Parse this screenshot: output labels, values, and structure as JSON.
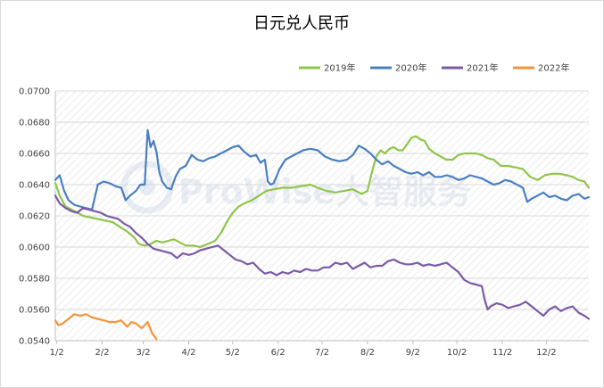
{
  "chart_data": {
    "type": "line",
    "title": "日元兑人民币",
    "xlabel": "",
    "ylabel": "",
    "categories": [
      "1/2",
      "2/2",
      "3/2",
      "4/2",
      "5/2",
      "6/2",
      "7/2",
      "8/2",
      "9/2",
      "10/2",
      "11/2",
      "12/2"
    ],
    "x_ticks": [
      "1/2",
      "2/2",
      "3/2",
      "4/2",
      "5/2",
      "6/2",
      "7/2",
      "8/2",
      "9/2",
      "10/2",
      "11/2",
      "12/2"
    ],
    "y_ticks": [
      "0.0540",
      "0.0560",
      "0.0580",
      "0.0600",
      "0.0620",
      "0.0640",
      "0.0660",
      "0.0680",
      "0.0700"
    ],
    "xlim_days": [
      1,
      365
    ],
    "ylim": [
      0.054,
      0.07
    ],
    "grid": true,
    "legend_position": "top-right",
    "series": [
      {
        "name": "2019年",
        "color": "#8fc54a",
        "points": [
          [
            1,
            0.0641
          ],
          [
            4,
            0.0633
          ],
          [
            8,
            0.0626
          ],
          [
            12,
            0.0624
          ],
          [
            16,
            0.0622
          ],
          [
            20,
            0.062
          ],
          [
            25,
            0.0619
          ],
          [
            30,
            0.0618
          ],
          [
            35,
            0.0617
          ],
          [
            40,
            0.0616
          ],
          [
            45,
            0.0613
          ],
          [
            50,
            0.061
          ],
          [
            55,
            0.0606
          ],
          [
            58,
            0.0602
          ],
          [
            62,
            0.0601
          ],
          [
            66,
            0.0602
          ],
          [
            70,
            0.0604
          ],
          [
            74,
            0.0603
          ],
          [
            78,
            0.0604
          ],
          [
            82,
            0.0605
          ],
          [
            86,
            0.0603
          ],
          [
            90,
            0.0601
          ],
          [
            95,
            0.0601
          ],
          [
            100,
            0.06
          ],
          [
            105,
            0.0602
          ],
          [
            110,
            0.0604
          ],
          [
            114,
            0.0609
          ],
          [
            118,
            0.0616
          ],
          [
            122,
            0.0622
          ],
          [
            126,
            0.0626
          ],
          [
            130,
            0.0628
          ],
          [
            135,
            0.063
          ],
          [
            140,
            0.0633
          ],
          [
            145,
            0.0636
          ],
          [
            150,
            0.0637
          ],
          [
            156,
            0.0638
          ],
          [
            162,
            0.0638
          ],
          [
            168,
            0.0639
          ],
          [
            175,
            0.064
          ],
          [
            180,
            0.0638
          ],
          [
            186,
            0.0636
          ],
          [
            192,
            0.0635
          ],
          [
            198,
            0.0636
          ],
          [
            204,
            0.0637
          ],
          [
            210,
            0.0634
          ],
          [
            214,
            0.0636
          ],
          [
            217,
            0.0648
          ],
          [
            220,
            0.0658
          ],
          [
            223,
            0.0662
          ],
          [
            226,
            0.066
          ],
          [
            229,
            0.0663
          ],
          [
            232,
            0.0664
          ],
          [
            235,
            0.0662
          ],
          [
            238,
            0.0662
          ],
          [
            241,
            0.0666
          ],
          [
            244,
            0.067
          ],
          [
            247,
            0.0671
          ],
          [
            250,
            0.0669
          ],
          [
            253,
            0.0668
          ],
          [
            256,
            0.0663
          ],
          [
            260,
            0.066
          ],
          [
            264,
            0.0658
          ],
          [
            268,
            0.0656
          ],
          [
            272,
            0.0656
          ],
          [
            276,
            0.0659
          ],
          [
            280,
            0.066
          ],
          [
            284,
            0.066
          ],
          [
            288,
            0.066
          ],
          [
            292,
            0.0659
          ],
          [
            296,
            0.0657
          ],
          [
            300,
            0.0656
          ],
          [
            305,
            0.0652
          ],
          [
            310,
            0.0652
          ],
          [
            315,
            0.0651
          ],
          [
            320,
            0.065
          ],
          [
            325,
            0.0645
          ],
          [
            330,
            0.0643
          ],
          [
            335,
            0.0646
          ],
          [
            340,
            0.0647
          ],
          [
            345,
            0.0647
          ],
          [
            350,
            0.0646
          ],
          [
            354,
            0.0645
          ],
          [
            358,
            0.0643
          ],
          [
            362,
            0.0642
          ],
          [
            365,
            0.0638
          ]
        ]
      },
      {
        "name": "2020年",
        "color": "#4a7fc1",
        "points": [
          [
            1,
            0.0643
          ],
          [
            4,
            0.0646
          ],
          [
            7,
            0.0636
          ],
          [
            10,
            0.063
          ],
          [
            14,
            0.0627
          ],
          [
            18,
            0.0626
          ],
          [
            22,
            0.0625
          ],
          [
            26,
            0.0624
          ],
          [
            30,
            0.064
          ],
          [
            34,
            0.0642
          ],
          [
            38,
            0.0641
          ],
          [
            42,
            0.0639
          ],
          [
            46,
            0.0638
          ],
          [
            49,
            0.063
          ],
          [
            52,
            0.0633
          ],
          [
            56,
            0.0636
          ],
          [
            59,
            0.064
          ],
          [
            62,
            0.064
          ],
          [
            64,
            0.0675
          ],
          [
            66,
            0.0664
          ],
          [
            68,
            0.0668
          ],
          [
            70,
            0.0661
          ],
          [
            72,
            0.0648
          ],
          [
            74,
            0.0642
          ],
          [
            77,
            0.0638
          ],
          [
            80,
            0.0637
          ],
          [
            83,
            0.0645
          ],
          [
            86,
            0.065
          ],
          [
            90,
            0.0652
          ],
          [
            94,
            0.0659
          ],
          [
            98,
            0.0656
          ],
          [
            102,
            0.0655
          ],
          [
            106,
            0.0657
          ],
          [
            110,
            0.0658
          ],
          [
            114,
            0.066
          ],
          [
            118,
            0.0662
          ],
          [
            122,
            0.0664
          ],
          [
            126,
            0.0665
          ],
          [
            130,
            0.0661
          ],
          [
            134,
            0.0658
          ],
          [
            138,
            0.0659
          ],
          [
            141,
            0.0654
          ],
          [
            144,
            0.0656
          ],
          [
            146,
            0.0642
          ],
          [
            148,
            0.064
          ],
          [
            150,
            0.0641
          ],
          [
            154,
            0.065
          ],
          [
            158,
            0.0656
          ],
          [
            162,
            0.0658
          ],
          [
            166,
            0.066
          ],
          [
            170,
            0.0662
          ],
          [
            175,
            0.0663
          ],
          [
            180,
            0.0662
          ],
          [
            185,
            0.0658
          ],
          [
            190,
            0.0656
          ],
          [
            195,
            0.0655
          ],
          [
            200,
            0.0656
          ],
          [
            204,
            0.0659
          ],
          [
            208,
            0.0665
          ],
          [
            212,
            0.0663
          ],
          [
            216,
            0.066
          ],
          [
            220,
            0.0656
          ],
          [
            224,
            0.0653
          ],
          [
            228,
            0.0655
          ],
          [
            232,
            0.0652
          ],
          [
            236,
            0.065
          ],
          [
            240,
            0.0648
          ],
          [
            244,
            0.0647
          ],
          [
            248,
            0.0648
          ],
          [
            252,
            0.0646
          ],
          [
            256,
            0.0648
          ],
          [
            260,
            0.0645
          ],
          [
            264,
            0.0645
          ],
          [
            268,
            0.0646
          ],
          [
            272,
            0.0645
          ],
          [
            276,
            0.0643
          ],
          [
            280,
            0.0644
          ],
          [
            284,
            0.0646
          ],
          [
            288,
            0.0645
          ],
          [
            292,
            0.0644
          ],
          [
            296,
            0.0642
          ],
          [
            300,
            0.064
          ],
          [
            304,
            0.0641
          ],
          [
            308,
            0.0643
          ],
          [
            312,
            0.0642
          ],
          [
            316,
            0.064
          ],
          [
            320,
            0.0638
          ],
          [
            323,
            0.0629
          ],
          [
            326,
            0.0631
          ],
          [
            330,
            0.0633
          ],
          [
            334,
            0.0635
          ],
          [
            338,
            0.0632
          ],
          [
            342,
            0.0633
          ],
          [
            346,
            0.0631
          ],
          [
            350,
            0.063
          ],
          [
            354,
            0.0633
          ],
          [
            358,
            0.0634
          ],
          [
            362,
            0.0631
          ],
          [
            365,
            0.0632
          ]
        ]
      },
      {
        "name": "2021年",
        "color": "#7b5aa6",
        "points": [
          [
            1,
            0.0633
          ],
          [
            4,
            0.0628
          ],
          [
            8,
            0.0625
          ],
          [
            12,
            0.0623
          ],
          [
            16,
            0.0622
          ],
          [
            20,
            0.0625
          ],
          [
            24,
            0.0624
          ],
          [
            28,
            0.0623
          ],
          [
            32,
            0.0622
          ],
          [
            36,
            0.062
          ],
          [
            40,
            0.0619
          ],
          [
            44,
            0.0618
          ],
          [
            48,
            0.0615
          ],
          [
            52,
            0.0613
          ],
          [
            56,
            0.0609
          ],
          [
            60,
            0.0606
          ],
          [
            64,
            0.0602
          ],
          [
            68,
            0.0599
          ],
          [
            72,
            0.0598
          ],
          [
            76,
            0.0597
          ],
          [
            80,
            0.0596
          ],
          [
            84,
            0.0593
          ],
          [
            88,
            0.0596
          ],
          [
            92,
            0.0595
          ],
          [
            96,
            0.0596
          ],
          [
            100,
            0.0598
          ],
          [
            104,
            0.0599
          ],
          [
            108,
            0.06
          ],
          [
            112,
            0.0601
          ],
          [
            116,
            0.0598
          ],
          [
            120,
            0.0595
          ],
          [
            124,
            0.0592
          ],
          [
            128,
            0.0591
          ],
          [
            132,
            0.0589
          ],
          [
            136,
            0.059
          ],
          [
            140,
            0.0586
          ],
          [
            144,
            0.0583
          ],
          [
            148,
            0.0584
          ],
          [
            152,
            0.0582
          ],
          [
            156,
            0.0584
          ],
          [
            160,
            0.0583
          ],
          [
            164,
            0.0585
          ],
          [
            168,
            0.0584
          ],
          [
            172,
            0.0586
          ],
          [
            176,
            0.0585
          ],
          [
            180,
            0.0585
          ],
          [
            184,
            0.0587
          ],
          [
            188,
            0.0587
          ],
          [
            192,
            0.059
          ],
          [
            196,
            0.0589
          ],
          [
            200,
            0.059
          ],
          [
            204,
            0.0586
          ],
          [
            208,
            0.0588
          ],
          [
            212,
            0.059
          ],
          [
            216,
            0.0587
          ],
          [
            220,
            0.0588
          ],
          [
            224,
            0.0588
          ],
          [
            228,
            0.0591
          ],
          [
            232,
            0.0592
          ],
          [
            236,
            0.059
          ],
          [
            240,
            0.0589
          ],
          [
            244,
            0.0589
          ],
          [
            248,
            0.059
          ],
          [
            252,
            0.0588
          ],
          [
            256,
            0.0589
          ],
          [
            260,
            0.0588
          ],
          [
            264,
            0.0589
          ],
          [
            268,
            0.059
          ],
          [
            272,
            0.0587
          ],
          [
            276,
            0.0584
          ],
          [
            280,
            0.0579
          ],
          [
            284,
            0.0577
          ],
          [
            288,
            0.0576
          ],
          [
            292,
            0.0575
          ],
          [
            294,
            0.0566
          ],
          [
            296,
            0.056
          ],
          [
            298,
            0.0562
          ],
          [
            302,
            0.0564
          ],
          [
            306,
            0.0563
          ],
          [
            310,
            0.0561
          ],
          [
            314,
            0.0562
          ],
          [
            318,
            0.0563
          ],
          [
            322,
            0.0565
          ],
          [
            326,
            0.0562
          ],
          [
            330,
            0.0559
          ],
          [
            334,
            0.0556
          ],
          [
            338,
            0.056
          ],
          [
            342,
            0.0562
          ],
          [
            346,
            0.0559
          ],
          [
            350,
            0.0561
          ],
          [
            354,
            0.0562
          ],
          [
            358,
            0.0558
          ],
          [
            362,
            0.0556
          ],
          [
            365,
            0.0554
          ]
        ]
      },
      {
        "name": "2022年",
        "color": "#f4953a",
        "points": [
          [
            1,
            0.0553
          ],
          [
            3,
            0.055
          ],
          [
            6,
            0.0551
          ],
          [
            10,
            0.0554
          ],
          [
            14,
            0.0557
          ],
          [
            18,
            0.0556
          ],
          [
            22,
            0.0557
          ],
          [
            26,
            0.0555
          ],
          [
            30,
            0.0554
          ],
          [
            34,
            0.0553
          ],
          [
            38,
            0.0552
          ],
          [
            42,
            0.0552
          ],
          [
            46,
            0.0553
          ],
          [
            50,
            0.0549
          ],
          [
            53,
            0.0552
          ],
          [
            56,
            0.0551
          ],
          [
            60,
            0.0548
          ],
          [
            64,
            0.0552
          ],
          [
            67,
            0.0545
          ],
          [
            70,
            0.0541
          ]
        ]
      }
    ]
  },
  "watermark": {
    "text": "ProWise大智服务"
  }
}
